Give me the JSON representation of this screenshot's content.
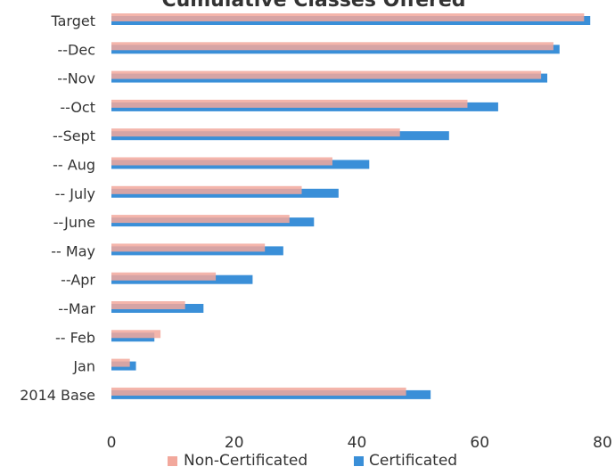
{
  "chart_data": {
    "type": "bar",
    "orientation": "horizontal",
    "title": "Cumulative Classes Offered",
    "categories": [
      "Target",
      "--Dec",
      "--Nov",
      "--Oct",
      "--Sept",
      "-- Aug",
      "-- July",
      "--June",
      "-- May",
      "--Apr",
      "--Mar",
      "-- Feb",
      "Jan",
      "2014 Base"
    ],
    "series": [
      {
        "name": "Certificated",
        "color": "#3a8fd8",
        "values": [
          78,
          73,
          71,
          63,
          55,
          42,
          37,
          33,
          28,
          23,
          15,
          7,
          4,
          52
        ]
      },
      {
        "name": "Non-Certificated",
        "color": "#f2a89c",
        "values": [
          77,
          72,
          70,
          58,
          47,
          36,
          31,
          29,
          25,
          17,
          12,
          8,
          3,
          48
        ]
      }
    ],
    "xlim": [
      0,
      80
    ],
    "x_ticks": [
      "0",
      "20",
      "40",
      "60",
      "80"
    ],
    "legend": {
      "position": "bottom",
      "items": [
        "Non-Certificated",
        "Certificated"
      ]
    },
    "grid": false
  }
}
